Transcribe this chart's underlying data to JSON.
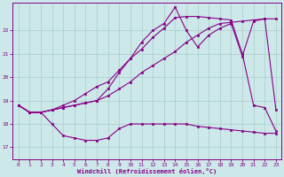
{
  "background_color": "#cce8e8",
  "grid_color": "#aacccc",
  "line_color": "#880088",
  "xlabel": "Windchill (Refroidissement éolien,°C)",
  "xlim": [
    -0.5,
    23.5
  ],
  "ylim": [
    16.5,
    23.2
  ],
  "yticks": [
    17,
    18,
    19,
    20,
    21,
    22
  ],
  "xticks": [
    0,
    1,
    2,
    3,
    4,
    5,
    6,
    7,
    8,
    9,
    10,
    11,
    12,
    13,
    14,
    15,
    16,
    17,
    18,
    19,
    20,
    21,
    22,
    23
  ],
  "series1_x": [
    0,
    1,
    2,
    3,
    4,
    5,
    6,
    7,
    8,
    9,
    10,
    11,
    12,
    13,
    14,
    15,
    16,
    17,
    18,
    19,
    20,
    21,
    22,
    23
  ],
  "series1_y": [
    18.8,
    18.5,
    18.5,
    18.6,
    18.7,
    18.8,
    18.9,
    19.0,
    19.2,
    19.5,
    19.8,
    20.2,
    20.5,
    20.8,
    21.1,
    21.5,
    21.8,
    22.1,
    22.3,
    22.35,
    22.4,
    22.45,
    22.5,
    22.5
  ],
  "series2_x": [
    0,
    1,
    2,
    3,
    4,
    5,
    6,
    7,
    8,
    9,
    10,
    11,
    12,
    13,
    14,
    15,
    16,
    17,
    18,
    19,
    20,
    21,
    22,
    23
  ],
  "series2_y": [
    18.8,
    18.5,
    18.5,
    18.6,
    18.8,
    19.0,
    19.3,
    19.6,
    19.8,
    20.3,
    20.8,
    21.2,
    21.7,
    22.1,
    22.55,
    22.6,
    22.6,
    22.55,
    22.5,
    22.45,
    21.0,
    18.8,
    18.7,
    17.7
  ],
  "series3_x": [
    0,
    1,
    2,
    3,
    4,
    5,
    6,
    7,
    8,
    9,
    10,
    11,
    12,
    13,
    14,
    15,
    16,
    17,
    18,
    19,
    20,
    21,
    22,
    23
  ],
  "series3_y": [
    18.8,
    18.5,
    18.5,
    18.0,
    17.5,
    17.4,
    17.3,
    17.3,
    17.4,
    17.8,
    18.0,
    18.0,
    18.0,
    18.0,
    18.0,
    18.0,
    17.9,
    17.85,
    17.8,
    17.75,
    17.7,
    17.65,
    17.6,
    17.6
  ],
  "series4_x": [
    0,
    1,
    2,
    3,
    4,
    5,
    6,
    7,
    8,
    9,
    10,
    11,
    12,
    13,
    14,
    15,
    16,
    17,
    18,
    19,
    20,
    21,
    22,
    23
  ],
  "series4_y": [
    18.8,
    18.5,
    18.5,
    18.6,
    18.7,
    18.8,
    18.9,
    19.0,
    19.5,
    20.2,
    20.8,
    21.5,
    22.0,
    22.3,
    23.0,
    22.0,
    21.3,
    21.8,
    22.1,
    22.3,
    20.9,
    22.4,
    22.5,
    18.6
  ]
}
